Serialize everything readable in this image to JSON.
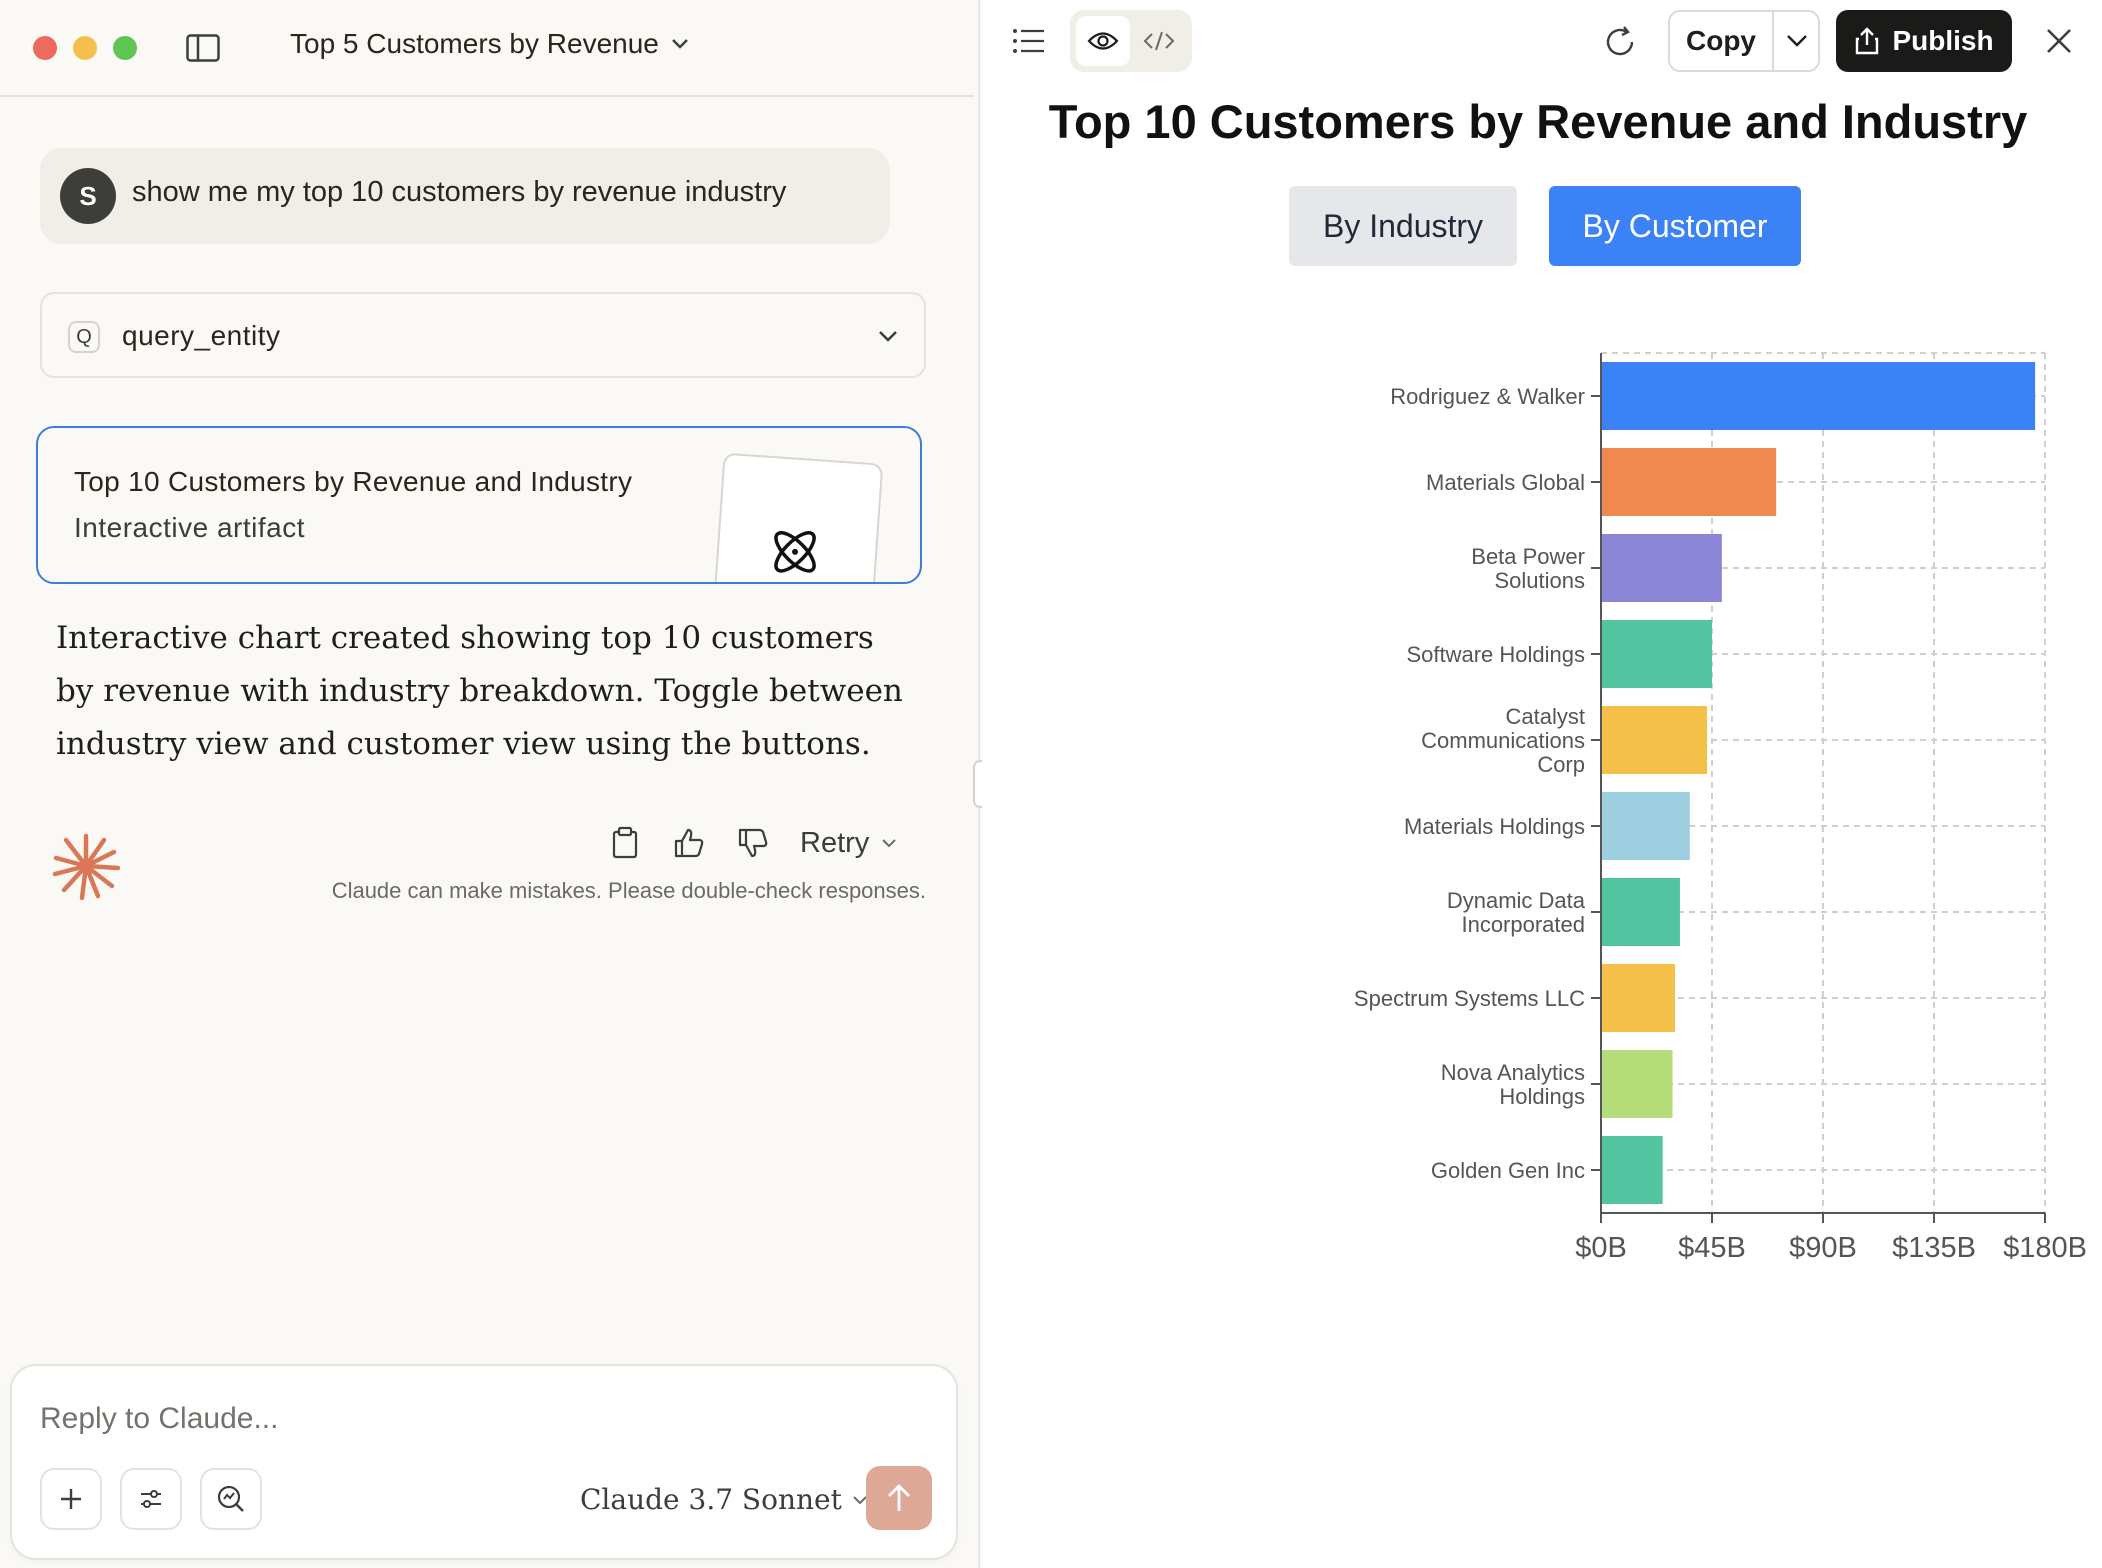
{
  "window": {
    "conversation_title": "Top 5 Customers by Revenue"
  },
  "chat": {
    "user_initial": "S",
    "user_message": "show me my top 10 customers by revenue industry",
    "tool_badge": "Q",
    "tool_name": "query_entity",
    "artifact_title": "Top 10 Customers by Revenue and Industry",
    "artifact_subtitle": "Interactive artifact",
    "assistant_message": "Interactive chart created showing top 10 customers by revenue with industry breakdown. Toggle between industry view and customer view using the buttons.",
    "retry_label": "Retry",
    "disclaimer": "Claude can make mistakes. Please double-check responses."
  },
  "composer": {
    "placeholder": "Reply to Claude...",
    "model": "Claude 3.7 Sonnet"
  },
  "artifact_toolbar": {
    "copy_label": "Copy",
    "publish_label": "Publish"
  },
  "artifact": {
    "heading": "Top 10 Customers by Revenue and Industry",
    "tab_industry": "By Industry",
    "tab_customer": "By Customer",
    "active_tab": "By Customer"
  },
  "colors": {
    "accent_blue": "#3b82f6",
    "claude_orange": "#d97757"
  },
  "chart_data": {
    "type": "bar",
    "orientation": "horizontal",
    "categories": [
      [
        "Rodriguez & Walker"
      ],
      [
        "Materials Global"
      ],
      [
        "Beta Power",
        "Solutions"
      ],
      [
        "Software Holdings"
      ],
      [
        "Catalyst",
        "Communications",
        "Corp"
      ],
      [
        "Materials Holdings"
      ],
      [
        "Dynamic Data",
        "Incorporated"
      ],
      [
        "Spectrum Systems LLC"
      ],
      [
        "Nova Analytics",
        "Holdings"
      ],
      [
        "Golden Gen Inc"
      ]
    ],
    "values": [
      176,
      71,
      49,
      45,
      43,
      36,
      32,
      30,
      29,
      25
    ],
    "colors": [
      "#3b82f6",
      "#f0894f",
      "#8b87d6",
      "#52c49f",
      "#f5c04a",
      "#9dcfe0",
      "#52c49f",
      "#f5c04a",
      "#b4dd79",
      "#52c49f"
    ],
    "xticks": [
      "$0B",
      "$45B",
      "$90B",
      "$135B",
      "$180B"
    ],
    "xlim": [
      0,
      180
    ],
    "grid": true
  }
}
